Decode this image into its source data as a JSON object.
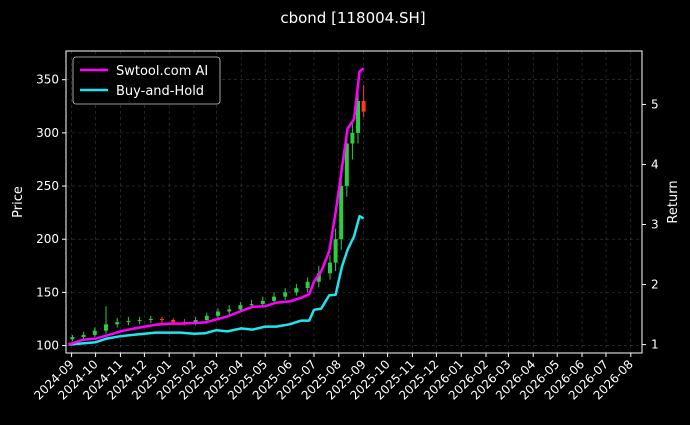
{
  "chart_data": {
    "type": "line",
    "title": "cbond [118004.SH]",
    "ylabel": "Price",
    "y2label": "Return",
    "ylim": [
      93,
      377
    ],
    "y2lim": [
      0.86,
      5.89
    ],
    "xlim": [
      "2024-08-25",
      "2026-08-15"
    ],
    "y_ticks": [
      100,
      150,
      200,
      250,
      300,
      350
    ],
    "y2_ticks": [
      1,
      2,
      3,
      4,
      5
    ],
    "x_ticks": [
      "2024-09",
      "2024-10",
      "2024-11",
      "2024-12",
      "2025-01",
      "2025-02",
      "2025-03",
      "2025-04",
      "2025-05",
      "2025-06",
      "2025-07",
      "2025-08",
      "2025-09",
      "2025-10",
      "2025-11",
      "2025-12",
      "2026-01",
      "2026-02",
      "2026-03",
      "2026-04",
      "2026-05",
      "2026-06",
      "2026-07",
      "2026-08"
    ],
    "grid": true,
    "legend_position": "top-left",
    "colors": {
      "background": "#000000",
      "strategy": "#ff00ff",
      "buyhold": "#1ee6f0",
      "candle_up": "#2ecc40",
      "candle_down": "#ff3b1f"
    },
    "series": [
      {
        "name": "Swtool.com AI",
        "axis": "return",
        "x": [
          "2024-08-28",
          "2024-09-15",
          "2024-10-01",
          "2024-10-15",
          "2024-11-01",
          "2024-11-15",
          "2024-12-01",
          "2024-12-15",
          "2025-01-01",
          "2025-01-15",
          "2025-02-01",
          "2025-02-15",
          "2025-03-01",
          "2025-03-15",
          "2025-04-01",
          "2025-04-15",
          "2025-05-01",
          "2025-05-15",
          "2025-06-01",
          "2025-06-15",
          "2025-06-25",
          "2025-07-01",
          "2025-07-10",
          "2025-07-20",
          "2025-07-28",
          "2025-08-05",
          "2025-08-12",
          "2025-08-20",
          "2025-08-27",
          "2025-09-01"
        ],
        "values": [
          1.0,
          1.08,
          1.1,
          1.15,
          1.22,
          1.26,
          1.3,
          1.33,
          1.35,
          1.35,
          1.36,
          1.37,
          1.42,
          1.47,
          1.56,
          1.63,
          1.64,
          1.7,
          1.72,
          1.78,
          1.84,
          2.05,
          2.22,
          2.55,
          3.2,
          3.95,
          4.6,
          4.75,
          5.55,
          5.6
        ]
      },
      {
        "name": "Buy-and-Hold",
        "axis": "return",
        "x": [
          "2024-08-28",
          "2024-09-15",
          "2024-10-01",
          "2024-10-15",
          "2024-11-01",
          "2024-11-15",
          "2024-12-01",
          "2024-12-15",
          "2025-01-01",
          "2025-01-15",
          "2025-02-01",
          "2025-02-15",
          "2025-03-01",
          "2025-03-15",
          "2025-04-01",
          "2025-04-15",
          "2025-05-01",
          "2025-05-15",
          "2025-06-01",
          "2025-06-15",
          "2025-06-25",
          "2025-07-01",
          "2025-07-10",
          "2025-07-20",
          "2025-07-28",
          "2025-08-05",
          "2025-08-12",
          "2025-08-20",
          "2025-08-27",
          "2025-09-01"
        ],
        "values": [
          1.0,
          1.02,
          1.04,
          1.1,
          1.14,
          1.16,
          1.18,
          1.2,
          1.2,
          1.2,
          1.18,
          1.19,
          1.24,
          1.22,
          1.27,
          1.25,
          1.3,
          1.3,
          1.34,
          1.4,
          1.4,
          1.58,
          1.6,
          1.82,
          1.83,
          2.3,
          2.58,
          2.8,
          3.14,
          3.1
        ]
      },
      {
        "name": "Price",
        "axis": "price",
        "type": "candlestick",
        "x": [
          "2024-09-02",
          "2024-09-16",
          "2024-09-30",
          "2024-10-14",
          "2024-10-28",
          "2024-11-11",
          "2024-11-25",
          "2024-12-09",
          "2024-12-23",
          "2025-01-06",
          "2025-01-20",
          "2025-02-03",
          "2025-02-17",
          "2025-03-03",
          "2025-03-17",
          "2025-03-31",
          "2025-04-14",
          "2025-04-28",
          "2025-05-12",
          "2025-05-26",
          "2025-06-09",
          "2025-06-23",
          "2025-07-07",
          "2025-07-21",
          "2025-07-28",
          "2025-08-04",
          "2025-08-11",
          "2025-08-18",
          "2025-08-25",
          "2025-09-01"
        ],
        "open": [
          106,
          108,
          110,
          114,
          120,
          122,
          123,
          124,
          125,
          124,
          122,
          121,
          124,
          128,
          132,
          134,
          138,
          139,
          142,
          146,
          150,
          154,
          160,
          168,
          178,
          200,
          250,
          290,
          300,
          330
        ],
        "close": [
          108,
          110,
          114,
          120,
          122,
          123,
          124,
          125,
          124,
          122,
          121,
          124,
          128,
          132,
          134,
          138,
          139,
          142,
          146,
          150,
          154,
          160,
          168,
          178,
          200,
          250,
          290,
          300,
          330,
          320
        ],
        "high": [
          110,
          113,
          117,
          137,
          126,
          127,
          127,
          128,
          127,
          126,
          125,
          127,
          131,
          135,
          138,
          141,
          143,
          146,
          150,
          154,
          158,
          164,
          175,
          185,
          210,
          270,
          300,
          310,
          350,
          345
        ],
        "low": [
          104,
          105,
          108,
          111,
          117,
          119,
          120,
          121,
          121,
          120,
          119,
          119,
          121,
          125,
          129,
          131,
          135,
          136,
          139,
          143,
          147,
          150,
          155,
          162,
          170,
          190,
          240,
          275,
          290,
          315
        ]
      }
    ]
  }
}
